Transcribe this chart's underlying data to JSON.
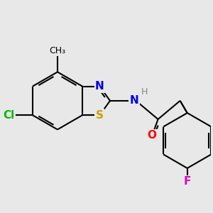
{
  "bg_color": "#e8e8e8",
  "bond_color": "#000000",
  "bond_lw": 1.5,
  "dbo": 0.055,
  "colors": {
    "S": "#c8a000",
    "N": "#0000ee",
    "O": "#ff0000",
    "Cl": "#00bb00",
    "F": "#dd00cc",
    "H": "#888888",
    "C": "#000000"
  }
}
